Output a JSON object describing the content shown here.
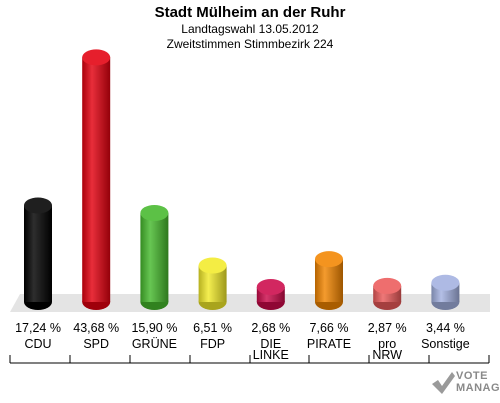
{
  "header": {
    "title": "Stadt Mülheim an der Ruhr",
    "subtitle1": "Landtagswahl 13.05.2012",
    "subtitle2": "Zweitstimmen Stimmbezirk 224"
  },
  "chart_data": {
    "type": "bar",
    "title": "Stadt Mülheim an der Ruhr",
    "subtitle": [
      "Landtagswahl 13.05.2012",
      "Zweitstimmen Stimmbezirk 224"
    ],
    "categories": [
      "CDU",
      "SPD",
      "GRÜNE",
      "FDP",
      "DIE LINKE",
      "PIRATE",
      "pro NRW",
      "Sonstige"
    ],
    "category_lines": [
      [
        "CDU"
      ],
      [
        "SPD"
      ],
      [
        "GRÜNE"
      ],
      [
        "FDP"
      ],
      [
        "DIE",
        "LINKE"
      ],
      [
        "PIRATE"
      ],
      [
        "pro",
        "NRW"
      ],
      [
        "Sonstige"
      ]
    ],
    "values": [
      17.24,
      43.68,
      15.9,
      6.51,
      2.68,
      7.66,
      2.87,
      3.44
    ],
    "value_labels": [
      "17,24 %",
      "43,68 %",
      "15,90 %",
      "6,51 %",
      "2,68 %",
      "7,66 %",
      "2,87 %",
      "3,44 %"
    ],
    "colors": [
      "#000000",
      "#e3000f",
      "#46b92d",
      "#f2ea2a",
      "#cc0a4a",
      "#f28500",
      "#ec5a5a",
      "#a3b1e0"
    ],
    "ylim": [
      0,
      45
    ],
    "grid": false,
    "legend": "none"
  },
  "logo": {
    "line1": "VOTE",
    "line2": "MANAGER"
  }
}
